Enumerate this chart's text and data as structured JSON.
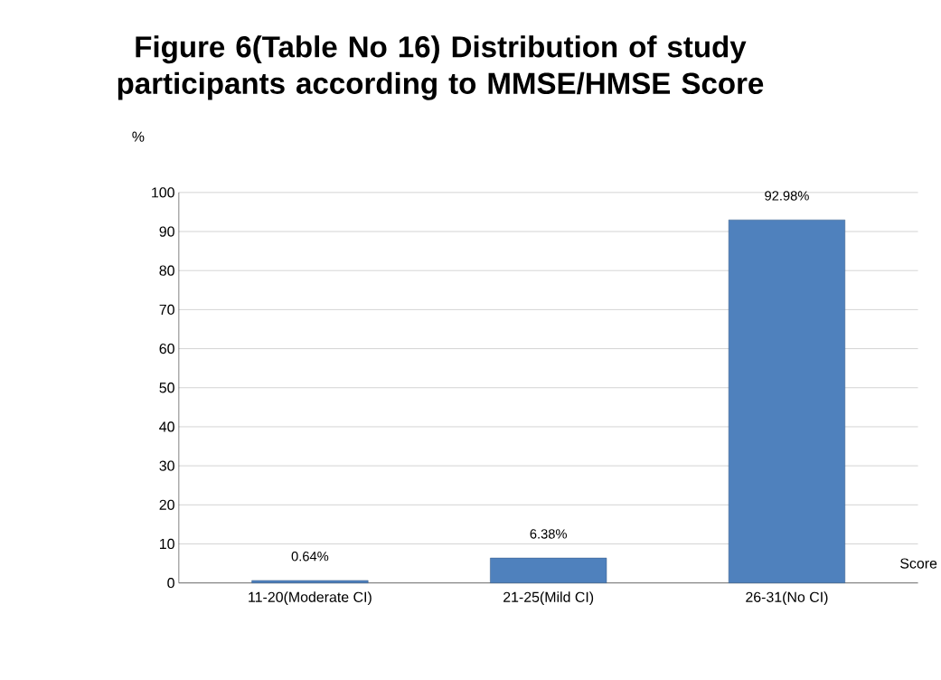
{
  "chart_data": {
    "type": "bar",
    "title": "Figure 6(Table No 16) Distribution of study participants according to MMSE/HMSE Score",
    "xlabel": "Score",
    "ylabel": "%",
    "categories": [
      "11-20(Moderate CI)",
      "21-25(Mild CI)",
      "26-31(No CI)"
    ],
    "values": [
      0.64,
      6.38,
      92.98
    ],
    "value_labels": [
      "0.64%",
      "6.38%",
      "92.98%"
    ],
    "color": "#4f81bd",
    "ylim": [
      0,
      100
    ],
    "yticks": [
      0,
      10,
      20,
      30,
      40,
      50,
      60,
      70,
      80,
      90,
      100
    ],
    "grid": "y"
  }
}
